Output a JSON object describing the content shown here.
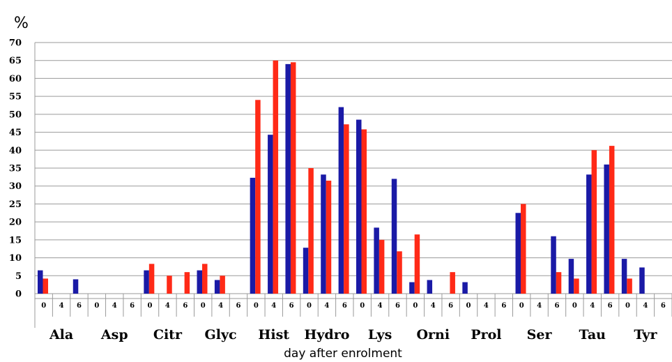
{
  "chart_data": {
    "type": "bar",
    "title": "",
    "ylabel": "%",
    "xlabel": "day after enrolment",
    "ylim": [
      0,
      70
    ],
    "yticks": [
      0,
      5,
      10,
      15,
      20,
      25,
      30,
      35,
      40,
      45,
      50,
      55,
      60,
      65,
      70
    ],
    "grid": true,
    "groups": [
      "Ala",
      "Asp",
      "Citr",
      "Glyc",
      "Hist",
      "Hydro",
      "Lys",
      "Orni",
      "Prol",
      "Ser",
      "Tau",
      "Tyr"
    ],
    "days": [
      "0",
      "4",
      "6"
    ],
    "colors": {
      "blue": "#1a1aa6",
      "red": "#ff2a17"
    },
    "series": [
      {
        "color": "blue",
        "values": [
          [
            6.5,
            0,
            4
          ],
          [
            0,
            0,
            0
          ],
          [
            6.5,
            0,
            0
          ],
          [
            6.5,
            3.8,
            0
          ],
          [
            32.3,
            44.3,
            64
          ],
          [
            12.8,
            33.2,
            52
          ],
          [
            48.5,
            18.4,
            32
          ],
          [
            3.2,
            3.8,
            0
          ],
          [
            3.2,
            0,
            0
          ],
          [
            22.5,
            0,
            16
          ],
          [
            9.7,
            33.2,
            36
          ],
          [
            9.7,
            7.3,
            0
          ]
        ]
      },
      {
        "color": "red",
        "values": [
          [
            4.2,
            0,
            0
          ],
          [
            0,
            0,
            0
          ],
          [
            8.3,
            5,
            6
          ],
          [
            8.3,
            5,
            0
          ],
          [
            54,
            65,
            64.5
          ],
          [
            35,
            31.5,
            47.2
          ],
          [
            45.8,
            15,
            11.8
          ],
          [
            16.5,
            0,
            6
          ],
          [
            0,
            0,
            0
          ],
          [
            25,
            0,
            6
          ],
          [
            4.2,
            40,
            41.2
          ],
          [
            4.2,
            0,
            0
          ]
        ]
      }
    ]
  }
}
